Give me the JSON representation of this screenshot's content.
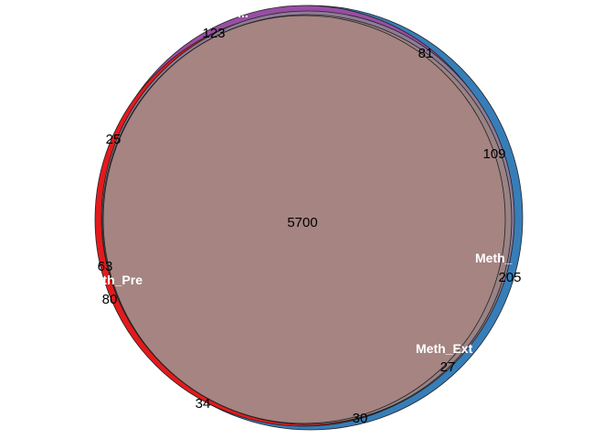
{
  "chart_data": {
    "type": "venn",
    "sets": [
      {
        "name": "Meth_Pre",
        "color": "#e41a1c"
      },
      {
        "name": "...",
        "color": "#984ea3"
      },
      {
        "name": "Meth_",
        "color": "#377eb8"
      },
      {
        "name": "Meth_Ext",
        "color": "#4daf4a"
      }
    ],
    "region_counts": [
      {
        "key": "core",
        "value": "5700"
      },
      {
        "key": "top",
        "value": "123"
      },
      {
        "key": "top-right",
        "value": "81"
      },
      {
        "key": "right-upper",
        "value": "109"
      },
      {
        "key": "right-lower",
        "value": "205"
      },
      {
        "key": "lower-right",
        "value": "27"
      },
      {
        "key": "bottom",
        "value": "30"
      },
      {
        "key": "bottom-left",
        "value": "34"
      },
      {
        "key": "left-upper",
        "value": "25"
      },
      {
        "key": "left-mid",
        "value": "63"
      },
      {
        "key": "left-lower",
        "value": "80"
      }
    ],
    "overlap_color": "#a58482"
  }
}
